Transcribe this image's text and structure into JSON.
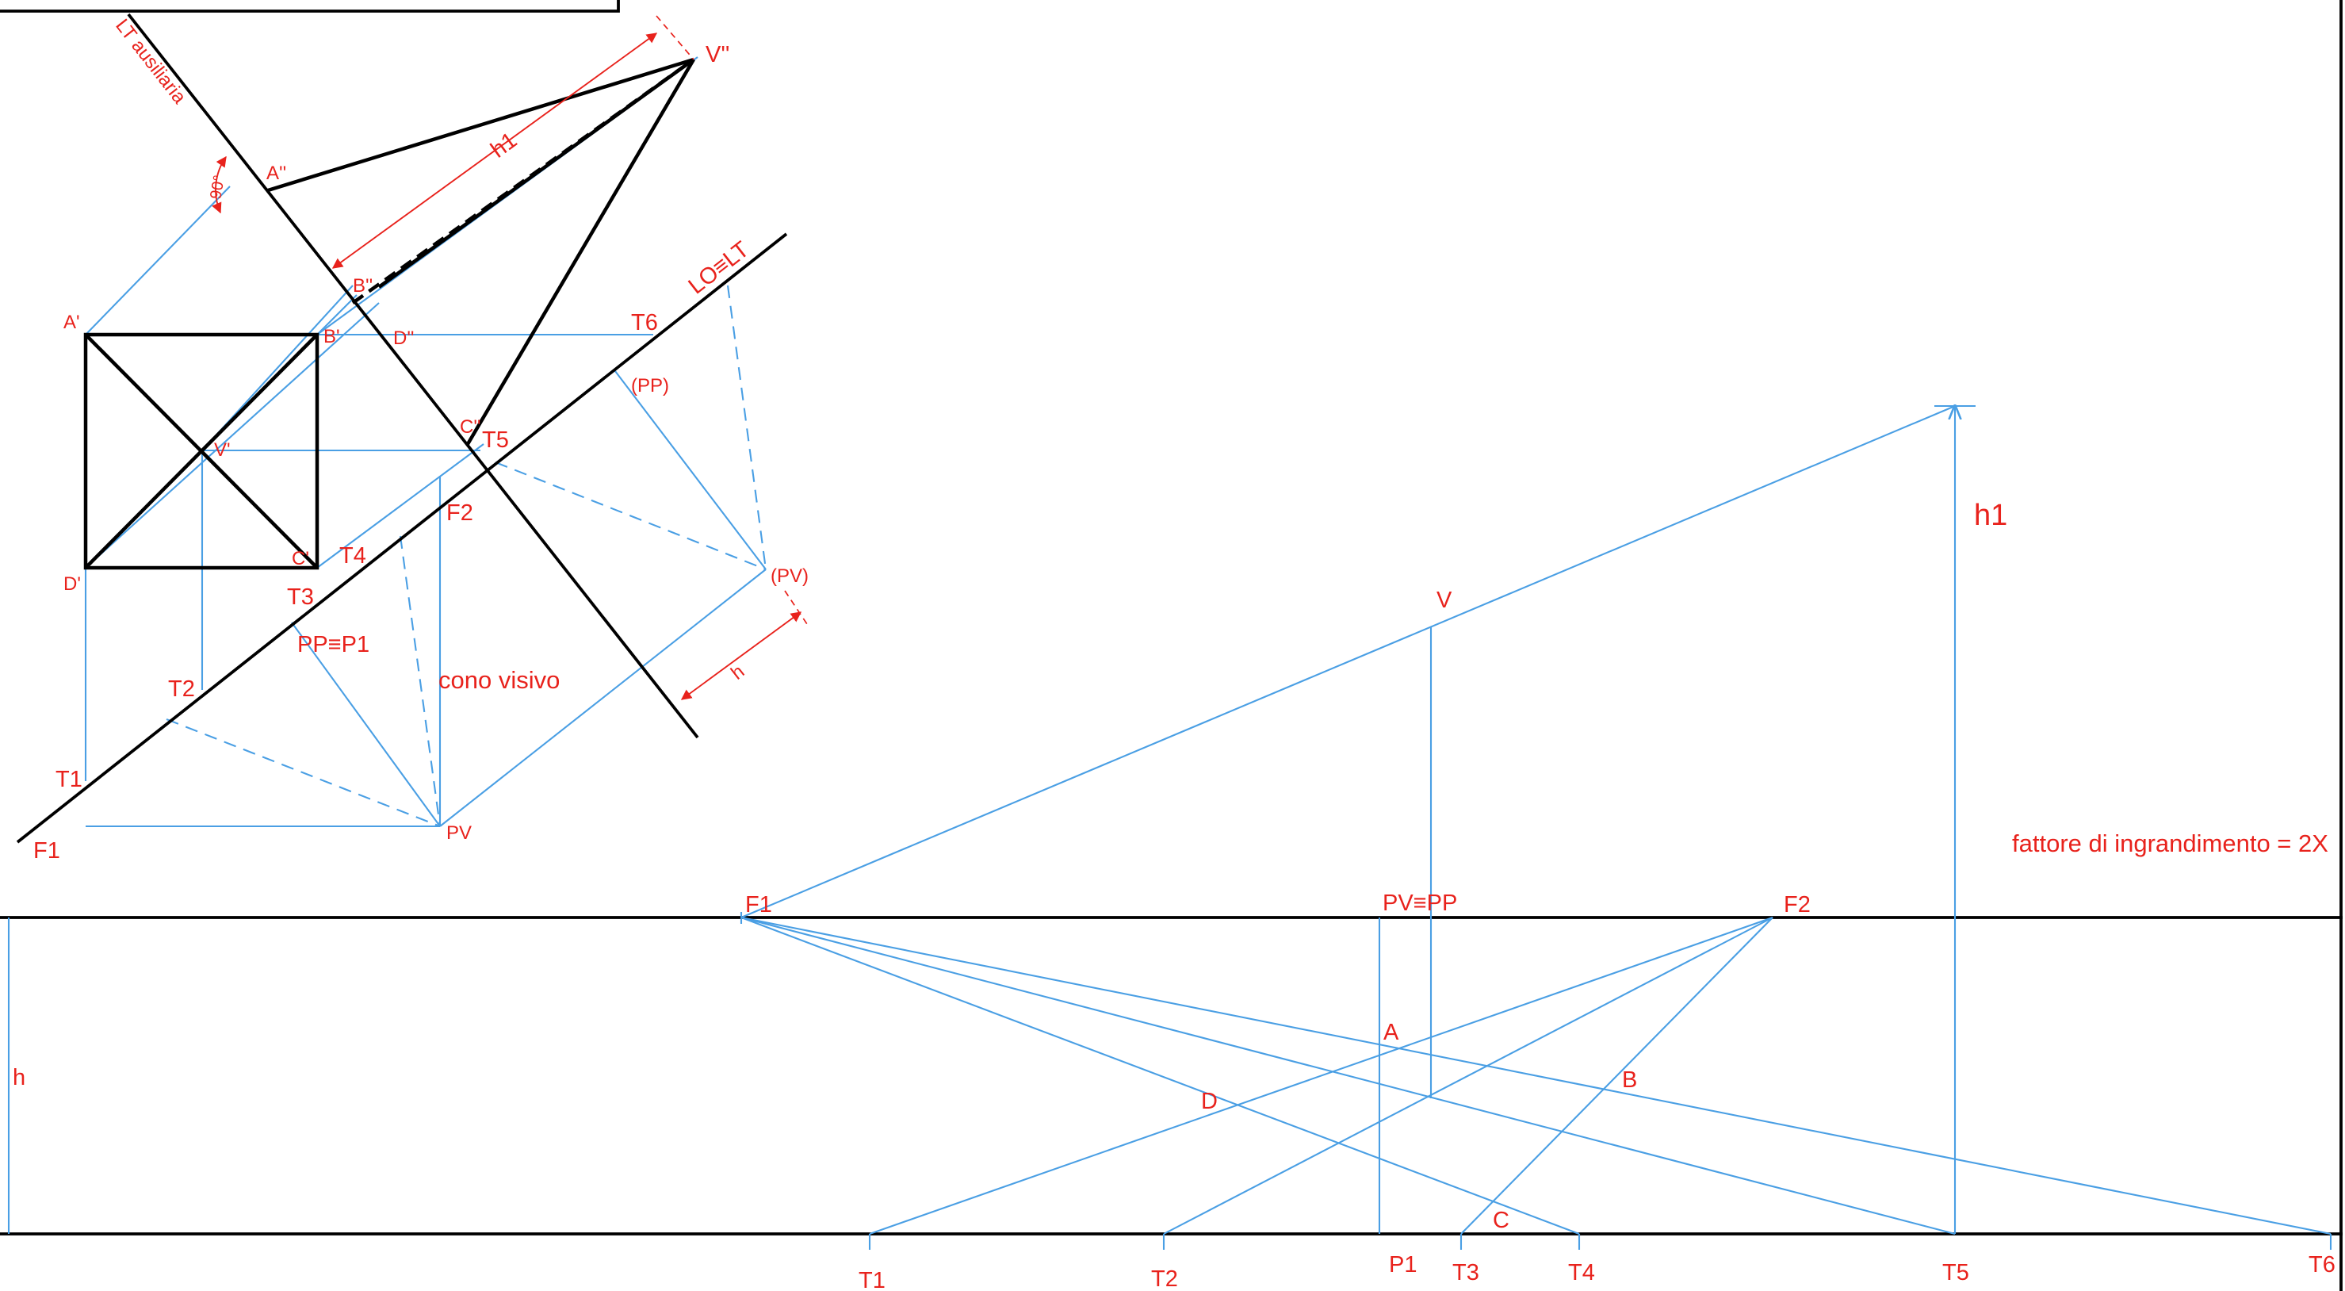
{
  "upper_view": {
    "lt_auxiliary_label": "LT ausiliaria",
    "angle_label": "90°",
    "h1_dimension_label": "h1",
    "lo_lt_label": "LO≡LT",
    "h_dimension_label": "h",
    "cone_label": "cono visivo",
    "points": {
      "v2": "V''",
      "a2": "A''",
      "b2": "B''",
      "c2": "C''",
      "d2": "D''",
      "a1": "A'",
      "b1": "B'",
      "c1": "C'",
      "d1": "D'",
      "v1": "V'",
      "pp_rot": "(PP)",
      "pv_rot": "(PV)",
      "pp_p1": "PP≡P1",
      "pv": "PV",
      "f1": "F1",
      "f2": "F2",
      "t1": "T1",
      "t2": "T2",
      "t3": "T3",
      "t4": "T4",
      "t5": "T5",
      "t6": "T6"
    }
  },
  "lower_view": {
    "v": "V",
    "h1": "h1",
    "f1": "F1",
    "f2": "F2",
    "pv_pp": "PV≡PP",
    "a": "A",
    "b": "B",
    "c": "C",
    "d": "D",
    "h": "h",
    "t1": "T1",
    "t2": "T2",
    "p1": "P1",
    "t3": "T3",
    "t4": "T4",
    "t5": "T5",
    "t6": "T6",
    "scale_note": "fattore di ingrandimento = 2X"
  }
}
